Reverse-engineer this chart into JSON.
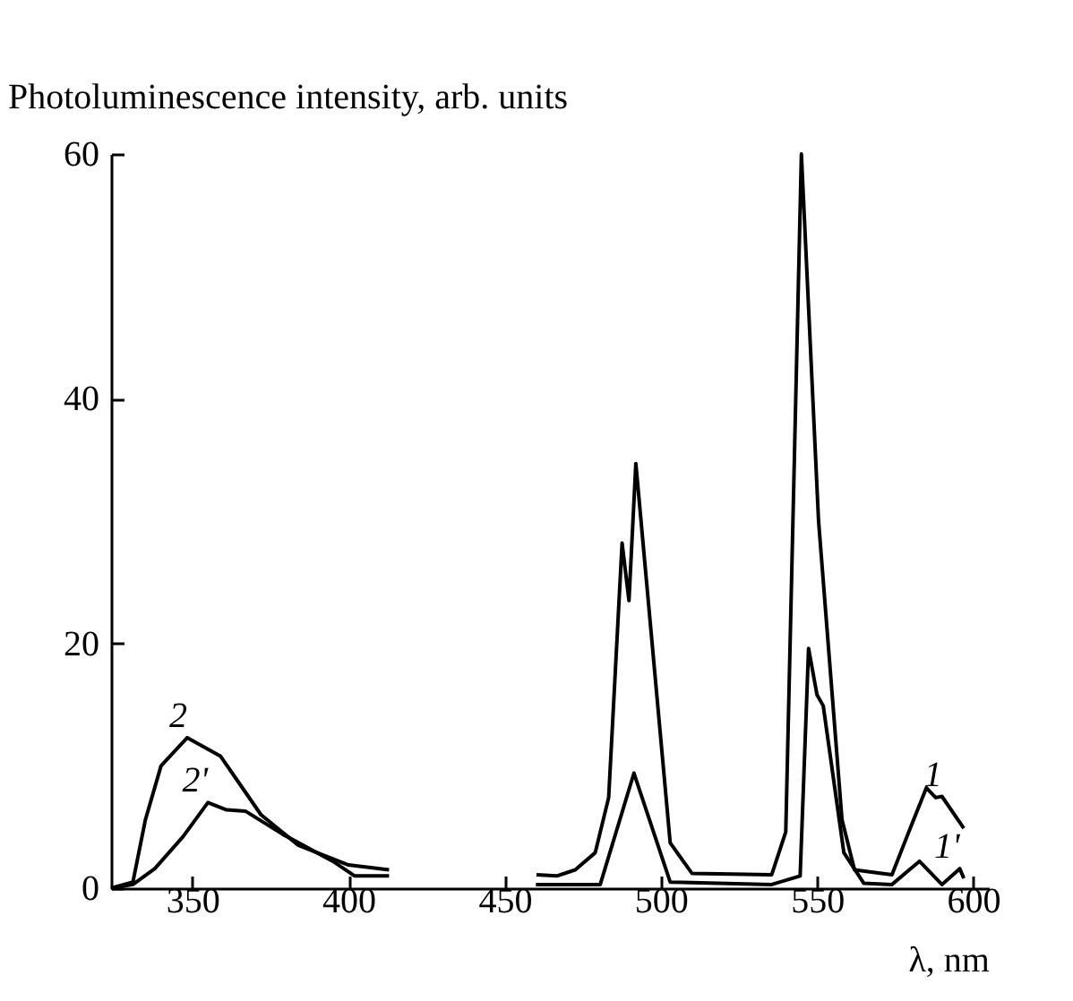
{
  "chart_data": {
    "type": "line",
    "xlabel": "λ, nm",
    "ylabel": "Photoluminescence intensity, arb. units",
    "xlim": [
      324,
      605
    ],
    "xticks": [
      350,
      400,
      450,
      500,
      550,
      600
    ],
    "ylim": [
      0,
      60
    ],
    "yticks": [
      0,
      20,
      40,
      60
    ],
    "grid": false,
    "legend": false,
    "marker": "none",
    "line_style": "solid",
    "series": [
      {
        "name": "2",
        "color": "#000000",
        "x": [
          324,
          331,
          335,
          340,
          348.4,
          359,
          372,
          384,
          400,
          413
        ],
        "values": [
          0,
          0.5,
          5.6,
          10,
          12.3,
          10.8,
          6,
          3.5,
          1.9,
          1.5
        ]
      },
      {
        "name": "2'",
        "color": "#000000",
        "x": [
          324,
          331,
          338,
          347,
          355,
          361,
          367,
          379,
          395,
          402,
          413
        ],
        "values": [
          0,
          0.3,
          1.6,
          4.2,
          7.0,
          6.4,
          6.3,
          4.4,
          2.2,
          1.0,
          1.0
        ]
      },
      {
        "name": "1",
        "color": "#000000",
        "x": [
          460.2,
          466.7,
          472.6,
          479,
          483.3,
          487.6,
          489.8,
          492,
          503,
          510,
          535.5,
          540,
          545,
          550.5,
          558,
          562,
          574,
          580,
          585,
          588,
          590,
          597
        ],
        "values": [
          1.1,
          1.0,
          1.5,
          2.9,
          7.4,
          28.2,
          23.5,
          34.7,
          3.7,
          1.2,
          1.1,
          4.6,
          60,
          30,
          5.6,
          1.5,
          1.1,
          5.0,
          8.2,
          7.4,
          7.5,
          4.9
        ]
      },
      {
        "name": "1'",
        "color": "#000000",
        "x": [
          460,
          480.6,
          491.4,
          503,
          535.5,
          544.6,
          547.3,
          550,
          552,
          558.6,
          565,
          574,
          582.8,
          590,
          595.7,
          597
        ],
        "values": [
          0.3,
          0.3,
          9.4,
          0.5,
          0.3,
          1.0,
          19.6,
          15.8,
          14.9,
          2.9,
          0.4,
          0.3,
          2.2,
          0.3,
          1.6,
          0.8
        ]
      }
    ]
  }
}
